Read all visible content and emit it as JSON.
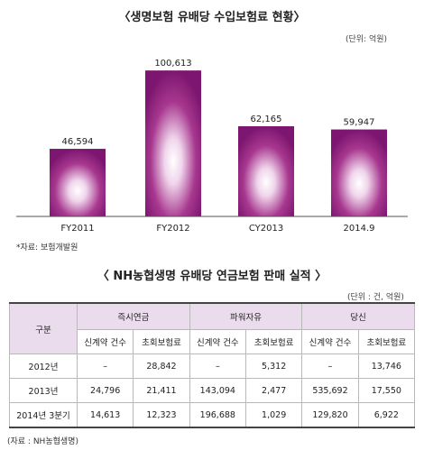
{
  "chart": {
    "title": "〈생명보험 유배당 수입보험료 현황〉",
    "unit": "(단위: 억원)",
    "source": "*자료: 보험개발원",
    "colors": {
      "bar_edge": "#7d1670",
      "bar_center": "#ffffff",
      "axis": "#555555"
    }
  },
  "chart_data": {
    "type": "bar",
    "title": "〈생명보험 유배당 수입보험료 현황〉",
    "categories": [
      "FY2011",
      "FY2012",
      "CY2013",
      "2014.9"
    ],
    "values": [
      46594,
      100613,
      62165,
      59947
    ],
    "value_labels": [
      "46,594",
      "100,613",
      "62,165",
      "59,947"
    ],
    "unit": "(단위: 억원)",
    "ylim": [
      0,
      115000
    ],
    "grid": false,
    "legend": "none"
  },
  "table": {
    "title": "〈 NH농협생명 유배당 연금보험 판매 실적 〉",
    "unit": "(단위 : 건, 억원)",
    "corner_label": "구분",
    "groups": [
      "즉시연금",
      "파워자유",
      "당신"
    ],
    "subheaders": [
      "신계약 건수",
      "초회보험료",
      "신계약 건수",
      "초회보험료",
      "신계약 건수",
      "초회보험료"
    ],
    "rows": [
      {
        "label": "2012년",
        "cells": [
          "–",
          "28,842",
          "–",
          "5,312",
          "–",
          "13,746"
        ]
      },
      {
        "label": "2013년",
        "cells": [
          "24,796",
          "21,411",
          "143,094",
          "2,477",
          "535,692",
          "17,550"
        ]
      },
      {
        "label": "2014년 3분기",
        "cells": [
          "14,613",
          "12,323",
          "196,688",
          "1,029",
          "129,820",
          "6,922"
        ]
      }
    ],
    "source": "(자료 : NH농협생명)"
  }
}
